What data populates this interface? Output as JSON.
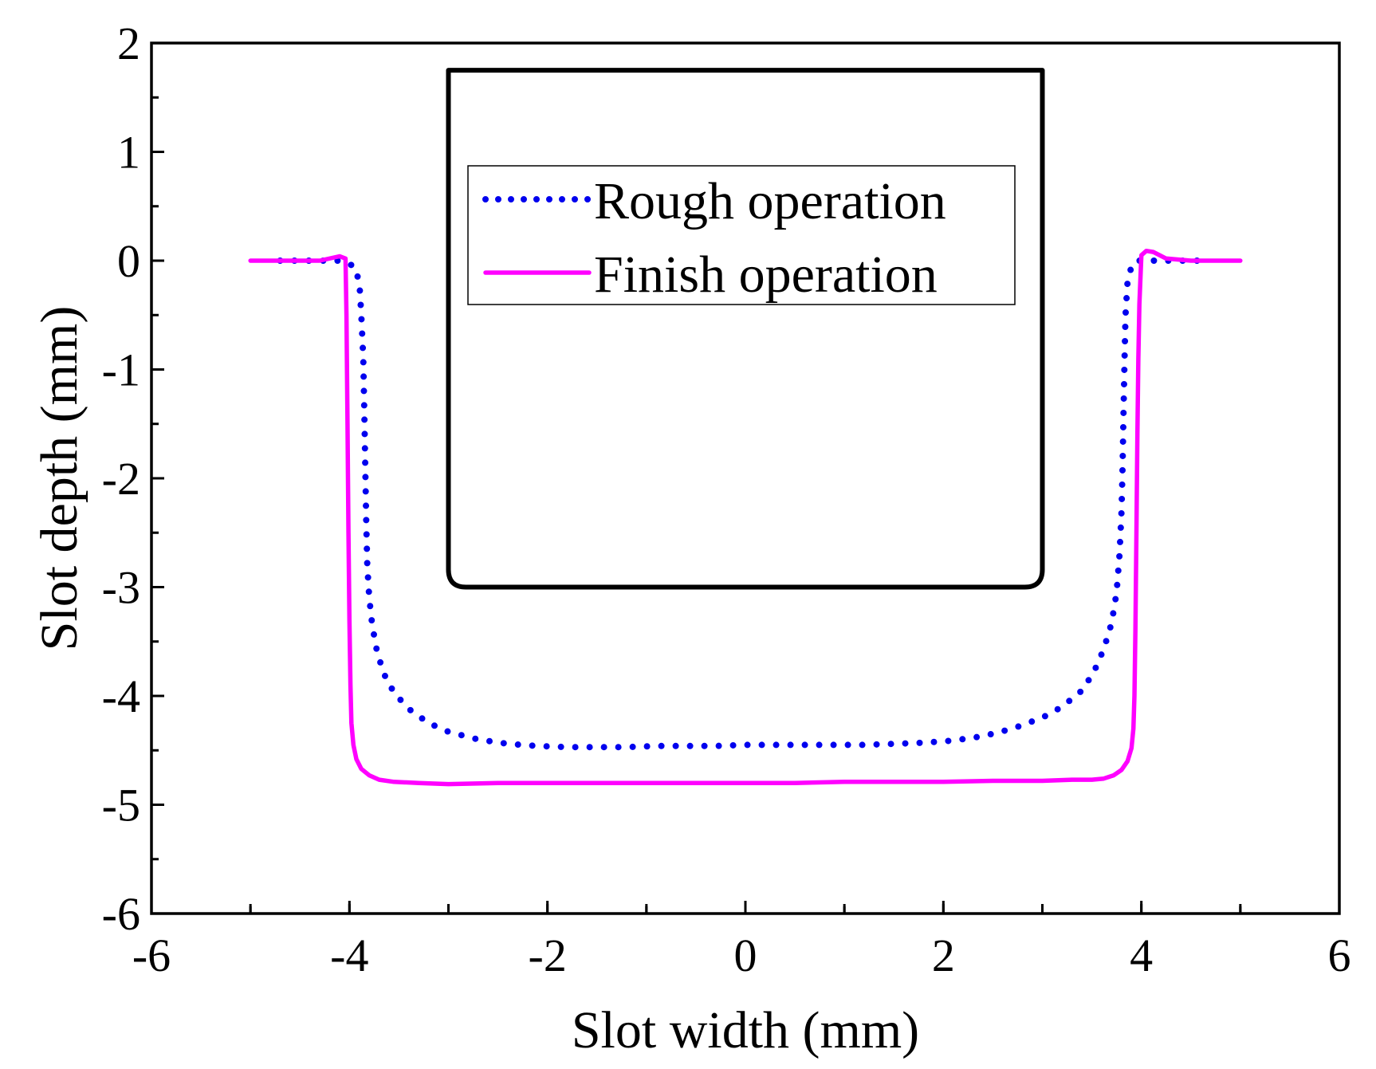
{
  "chart_data": {
    "type": "line",
    "title": "",
    "xlabel": "Slot width (mm)",
    "ylabel": "Slot depth (mm)",
    "xlim": [
      -6,
      6
    ],
    "ylim": [
      -6,
      2
    ],
    "xticks": [
      -6,
      -4,
      -2,
      0,
      2,
      4,
      6
    ],
    "yticks": [
      2,
      1,
      0,
      -1,
      -2,
      -3,
      -4,
      -5,
      -6
    ],
    "xtick_labels": [
      "-6",
      "-4",
      "-2",
      "0",
      "2",
      "4",
      "6"
    ],
    "ytick_labels": [
      "2",
      "1",
      "0",
      "-1",
      "-2",
      "-3",
      "-4",
      "-5",
      "-6"
    ],
    "grid": false,
    "legend_position": "top-center",
    "inset_annotation": "rounded rectangle (tool profile) spanning x from -3 to 3 and y from -3 to 1.75",
    "series": [
      {
        "name": "Rough operation",
        "color": "#0000ee",
        "style": "dotted",
        "x": [
          -4.7,
          -4.4,
          -4.1,
          -3.95,
          -3.9,
          -3.88,
          -3.86,
          -3.85,
          -3.84,
          -3.83,
          -3.82,
          -3.8,
          -3.77,
          -3.72,
          -3.65,
          -3.55,
          -3.4,
          -3.2,
          -3.0,
          -2.7,
          -2.4,
          -2.1,
          -1.8,
          -1.5,
          -1.2,
          -0.9,
          -0.6,
          -0.3,
          0.0,
          0.3,
          0.6,
          0.9,
          1.2,
          1.5,
          1.8,
          2.1,
          2.4,
          2.7,
          3.0,
          3.2,
          3.4,
          3.52,
          3.62,
          3.7,
          3.75,
          3.78,
          3.8,
          3.81,
          3.82,
          3.83,
          3.84,
          3.86,
          3.9,
          3.95,
          4.1,
          4.4,
          4.7
        ],
        "y": [
          0,
          0,
          0,
          -0.05,
          -0.2,
          -0.5,
          -0.9,
          -1.4,
          -1.9,
          -2.4,
          -2.8,
          -3.1,
          -3.35,
          -3.6,
          -3.8,
          -3.97,
          -4.12,
          -4.25,
          -4.33,
          -4.4,
          -4.44,
          -4.46,
          -4.47,
          -4.47,
          -4.47,
          -4.46,
          -4.46,
          -4.46,
          -4.45,
          -4.45,
          -4.45,
          -4.45,
          -4.45,
          -4.44,
          -4.43,
          -4.41,
          -4.37,
          -4.3,
          -4.2,
          -4.1,
          -3.95,
          -3.78,
          -3.57,
          -3.33,
          -3.05,
          -2.7,
          -2.3,
          -1.9,
          -1.4,
          -0.9,
          -0.5,
          -0.2,
          -0.05,
          0,
          0,
          0,
          0
        ]
      },
      {
        "name": "Finish operation",
        "color": "#ff00ff",
        "style": "solid",
        "x": [
          -5.0,
          -4.6,
          -4.3,
          -4.1,
          -4.04,
          -4.03,
          -4.02,
          -4.01,
          -4.0,
          -3.99,
          -3.98,
          -3.96,
          -3.93,
          -3.88,
          -3.8,
          -3.7,
          -3.55,
          -3.3,
          -3.0,
          -2.5,
          -2.0,
          -1.5,
          -1.0,
          -0.5,
          0.0,
          0.5,
          1.0,
          1.5,
          2.0,
          2.5,
          3.0,
          3.3,
          3.5,
          3.62,
          3.72,
          3.8,
          3.86,
          3.9,
          3.92,
          3.93,
          3.94,
          3.95,
          3.96,
          3.97,
          3.98,
          4.0,
          4.05,
          4.12,
          4.25,
          4.5,
          4.8,
          5.0
        ],
        "y": [
          0,
          0,
          0,
          0.04,
          0.02,
          -0.5,
          -1.5,
          -2.5,
          -3.3,
          -3.9,
          -4.25,
          -4.45,
          -4.58,
          -4.67,
          -4.73,
          -4.77,
          -4.79,
          -4.8,
          -4.81,
          -4.8,
          -4.8,
          -4.8,
          -4.8,
          -4.8,
          -4.8,
          -4.8,
          -4.79,
          -4.79,
          -4.79,
          -4.78,
          -4.78,
          -4.77,
          -4.77,
          -4.76,
          -4.73,
          -4.68,
          -4.6,
          -4.48,
          -4.3,
          -4.0,
          -3.4,
          -2.5,
          -1.6,
          -0.9,
          -0.4,
          0.05,
          0.09,
          0.08,
          0.02,
          0,
          0,
          0
        ]
      }
    ]
  }
}
